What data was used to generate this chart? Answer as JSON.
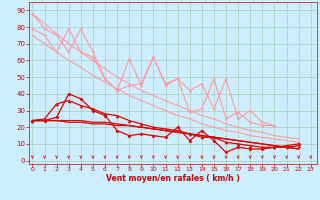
{
  "bg_color": "#cceeff",
  "grid_color": "#aaccbb",
  "line_color_light": "#ff9999",
  "line_color_dark": "#dd0000",
  "xlabel": "Vent moyen/en rafales ( km/h )",
  "tick_color": "#cc0000",
  "x_ticks": [
    0,
    1,
    2,
    3,
    4,
    5,
    6,
    7,
    8,
    9,
    10,
    11,
    12,
    13,
    14,
    15,
    16,
    17,
    18,
    19,
    20,
    21,
    22,
    23
  ],
  "y_ticks": [
    0,
    10,
    20,
    30,
    40,
    50,
    60,
    70,
    80,
    90
  ],
  "ylim": [
    -2,
    95
  ],
  "xlim": [
    -0.3,
    23.5
  ],
  "series_light_fluct1": [
    88,
    79,
    75,
    65,
    79,
    65,
    49,
    42,
    61,
    45,
    62,
    46,
    49,
    42,
    46,
    31,
    49,
    25,
    30,
    23,
    21
  ],
  "series_light_fluct2": [
    79,
    75,
    65,
    79,
    65,
    62,
    49,
    42,
    45,
    46,
    62,
    45,
    49,
    29,
    31,
    49,
    25,
    29,
    23,
    21,
    21
  ],
  "series_light_diag1": [
    88,
    82,
    76,
    70,
    65,
    60,
    55,
    50,
    46,
    42,
    39,
    36,
    33,
    30,
    27,
    25,
    22,
    20,
    18,
    17,
    15,
    14,
    13
  ],
  "series_light_diag2": [
    75,
    70,
    65,
    60,
    56,
    51,
    47,
    43,
    39,
    36,
    33,
    30,
    27,
    25,
    22,
    20,
    18,
    17,
    15,
    14,
    13,
    12,
    11
  ],
  "series_dark_fluct": [
    24,
    24,
    26,
    40,
    37,
    30,
    27,
    18,
    15,
    16,
    15,
    14,
    20,
    12,
    18,
    12,
    5,
    8,
    7,
    7,
    8,
    9,
    10
  ],
  "series_dark_diag1": [
    24,
    24,
    24,
    24,
    24,
    23,
    23,
    22,
    21,
    20,
    19,
    18,
    17,
    16,
    15,
    14,
    13,
    12,
    11,
    10,
    9,
    8,
    7
  ],
  "series_dark_diag2": [
    24,
    24,
    24,
    23,
    23,
    22,
    22,
    21,
    21,
    20,
    19,
    18,
    17,
    16,
    15,
    14,
    13,
    12,
    11,
    10,
    9,
    8,
    7
  ],
  "series_dark_medium": [
    24,
    25,
    34,
    36,
    33,
    31,
    28,
    27,
    24,
    22,
    20,
    19,
    18,
    16,
    14,
    14,
    11,
    10,
    9,
    8,
    8,
    8,
    9
  ],
  "wind_x": [
    0,
    1,
    2,
    3,
    4,
    5,
    6,
    7,
    8,
    9,
    10,
    11,
    12,
    13,
    14,
    15,
    16,
    17,
    18,
    19,
    20,
    21,
    22,
    23
  ]
}
